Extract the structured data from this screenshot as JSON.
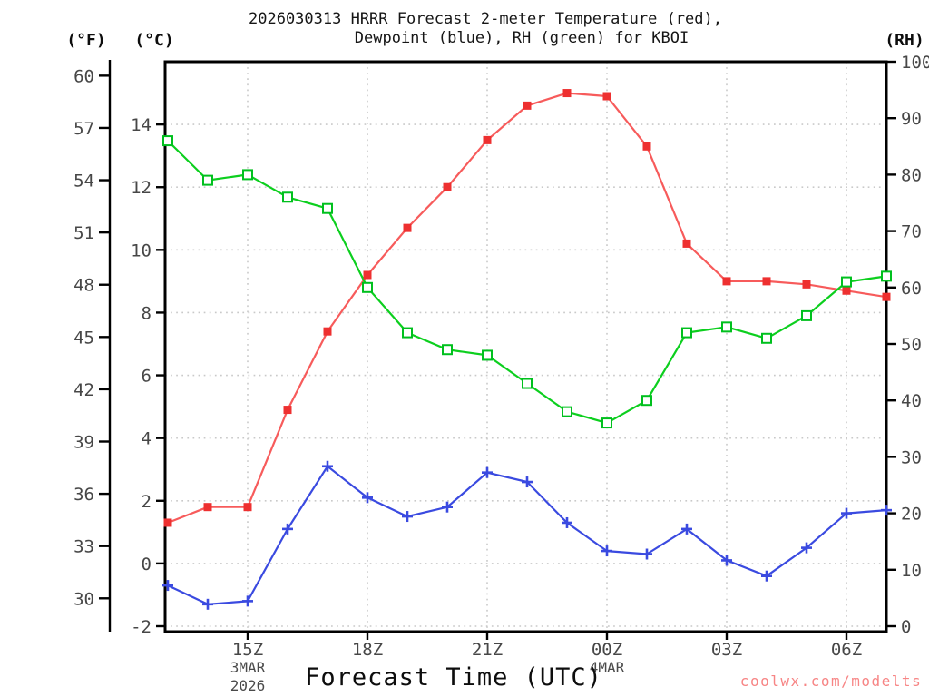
{
  "header": {
    "title_line1": "2026030313 HRRR Forecast 2-meter Temperature (red),",
    "title_line2": "Dewpoint (blue), RH (green) for KBOI"
  },
  "footer": {
    "xaxis_title": "Forecast Time (UTC)",
    "watermark": "coolwx.com/modelts"
  },
  "chart_data": {
    "type": "line",
    "title": "2026030313 HRRR Forecast 2-meter Temperature (red), Dewpoint (blue), RH (green) for KBOI",
    "model": "HRRR",
    "station": "KBOI",
    "run": "2026030313",
    "xlabel": "Forecast Time (UTC)",
    "x_hours": [
      "13Z",
      "14Z",
      "15Z",
      "16Z",
      "17Z",
      "18Z",
      "19Z",
      "20Z",
      "21Z",
      "22Z",
      "23Z",
      "00Z",
      "01Z",
      "02Z",
      "03Z",
      "04Z",
      "05Z",
      "06Z",
      "07Z"
    ],
    "x_tick_labels": [
      "15Z",
      "18Z",
      "21Z",
      "00Z",
      "03Z",
      "06Z"
    ],
    "x_tick_indices": [
      2,
      5,
      8,
      11,
      14,
      17
    ],
    "date_labels": [
      {
        "x_tick": "15Z",
        "lines": [
          "3MAR",
          "2026"
        ]
      },
      {
        "x_tick": "00Z",
        "lines": [
          "4MAR"
        ]
      }
    ],
    "axes": {
      "fahrenheit": {
        "label": "(°F)",
        "ticks": [
          60,
          57,
          54,
          51,
          48,
          45,
          42,
          39,
          36,
          33,
          30
        ],
        "range": [
          28.4,
          60.8
        ],
        "side": "outer-left"
      },
      "celsius": {
        "label": "(°C)",
        "ticks": [
          14,
          12,
          10,
          8,
          6,
          4,
          2,
          0,
          -2
        ],
        "range": [
          -2,
          16
        ],
        "side": "left"
      },
      "rh": {
        "label": "(RH)",
        "ticks": [
          100,
          90,
          80,
          70,
          60,
          50,
          40,
          30,
          20,
          10,
          0
        ],
        "range": [
          0,
          100
        ],
        "side": "right"
      }
    },
    "grid": {
      "horizontal_at": "celsius_ticks",
      "vertical_at": "x_ticks",
      "style": "dotted",
      "color": "#c9c9c9"
    },
    "series": [
      {
        "name": "2-meter Temperature",
        "unit": "°C",
        "axis": "celsius",
        "marker": "filled-square",
        "line_color": "#f75b5b",
        "marker_color": "#ee3030",
        "values": [
          1.3,
          1.8,
          1.8,
          4.9,
          7.4,
          9.2,
          10.7,
          12.0,
          13.5,
          14.6,
          15.0,
          14.9,
          13.3,
          10.2,
          9.0,
          9.0,
          8.9,
          8.7,
          8.5
        ]
      },
      {
        "name": "Dewpoint",
        "unit": "°C",
        "axis": "celsius",
        "marker": "plus",
        "line_color": "#3a4ae0",
        "marker_color": "#3a4ae0",
        "values": [
          -0.7,
          -1.3,
          -1.2,
          1.1,
          3.1,
          2.1,
          1.5,
          1.8,
          2.9,
          2.6,
          1.3,
          0.4,
          0.3,
          1.1,
          0.1,
          -0.4,
          0.5,
          1.6,
          1.7
        ]
      },
      {
        "name": "Relative Humidity",
        "unit": "%",
        "axis": "rh",
        "marker": "open-square",
        "line_color": "#0ccf1e",
        "marker_color": "#00c01e",
        "values": [
          86,
          79,
          80,
          76,
          74,
          60,
          52,
          49,
          48,
          43,
          38,
          36,
          40,
          52,
          53,
          51,
          55,
          61,
          62
        ]
      }
    ]
  }
}
